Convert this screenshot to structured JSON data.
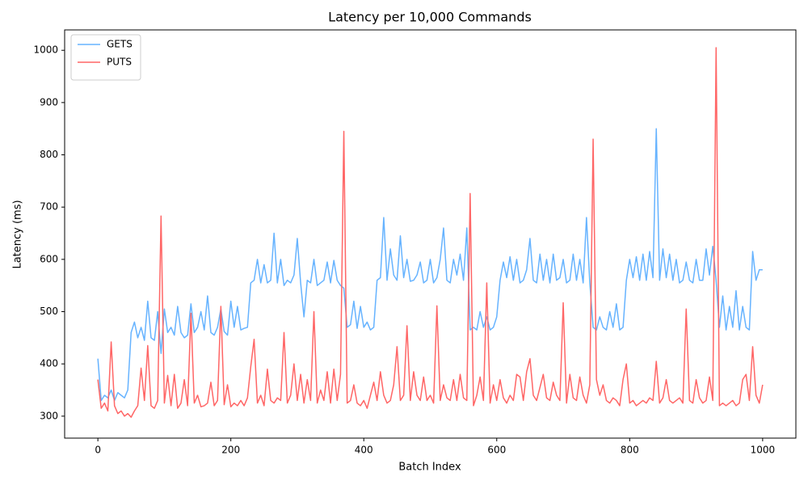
{
  "chart_data": {
    "type": "line",
    "title": "Latency per 10,000 Commands",
    "x_label": "Batch Index",
    "y_label": "Latency (ms)",
    "xlim": [
      -50,
      1050
    ],
    "ylim": [
      258,
      1039
    ],
    "xticks": [
      0,
      200,
      400,
      600,
      800,
      1000
    ],
    "yticks": [
      300,
      400,
      500,
      600,
      700,
      800,
      900,
      1000
    ],
    "grid": false,
    "legend": "upper-left",
    "x": [
      0,
      5,
      10,
      15,
      20,
      25,
      30,
      35,
      40,
      45,
      50,
      55,
      60,
      65,
      70,
      75,
      80,
      85,
      90,
      95,
      100,
      105,
      110,
      115,
      120,
      125,
      130,
      135,
      140,
      145,
      150,
      155,
      160,
      165,
      170,
      175,
      180,
      185,
      190,
      195,
      200,
      205,
      210,
      215,
      220,
      225,
      230,
      235,
      240,
      245,
      250,
      255,
      260,
      265,
      270,
      275,
      280,
      285,
      290,
      295,
      300,
      305,
      310,
      315,
      320,
      325,
      330,
      335,
      340,
      345,
      350,
      355,
      360,
      365,
      370,
      375,
      380,
      385,
      390,
      395,
      400,
      405,
      410,
      415,
      420,
      425,
      430,
      435,
      440,
      445,
      450,
      455,
      460,
      465,
      470,
      475,
      480,
      485,
      490,
      495,
      500,
      505,
      510,
      515,
      520,
      525,
      530,
      535,
      540,
      545,
      550,
      555,
      560,
      565,
      570,
      575,
      580,
      585,
      590,
      595,
      600,
      605,
      610,
      615,
      620,
      625,
      630,
      635,
      640,
      645,
      650,
      655,
      660,
      665,
      670,
      675,
      680,
      685,
      690,
      695,
      700,
      705,
      710,
      715,
      720,
      725,
      730,
      735,
      740,
      745,
      750,
      755,
      760,
      765,
      770,
      775,
      780,
      785,
      790,
      795,
      800,
      805,
      810,
      815,
      820,
      825,
      830,
      835,
      840,
      845,
      850,
      855,
      860,
      865,
      870,
      875,
      880,
      885,
      890,
      895,
      900,
      905,
      910,
      915,
      920,
      925,
      930,
      935,
      940,
      945,
      950,
      955,
      960,
      965,
      970,
      975,
      980,
      985,
      990,
      995,
      1000
    ],
    "series": [
      {
        "name": "GETS",
        "color": "#66b3ff",
        "values": [
          410,
          330,
          340,
          335,
          350,
          330,
          345,
          340,
          335,
          350,
          460,
          480,
          450,
          470,
          445,
          520,
          450,
          445,
          500,
          420,
          505,
          460,
          470,
          455,
          510,
          460,
          450,
          455,
          515,
          460,
          470,
          500,
          465,
          530,
          460,
          455,
          470,
          505,
          462,
          455,
          520,
          470,
          510,
          465,
          468,
          470,
          555,
          560,
          600,
          555,
          590,
          555,
          560,
          650,
          555,
          600,
          550,
          560,
          555,
          570,
          640,
          555,
          490,
          560,
          555,
          600,
          550,
          555,
          560,
          595,
          555,
          598,
          560,
          550,
          545,
          470,
          475,
          520,
          468,
          510,
          470,
          480,
          465,
          470,
          560,
          565,
          680,
          560,
          620,
          570,
          560,
          645,
          565,
          600,
          558,
          560,
          570,
          595,
          555,
          560,
          600,
          555,
          565,
          600,
          660,
          560,
          555,
          600,
          570,
          610,
          560,
          660,
          465,
          470,
          465,
          500,
          470,
          490,
          465,
          470,
          490,
          560,
          595,
          565,
          605,
          560,
          600,
          555,
          560,
          580,
          640,
          560,
          555,
          610,
          560,
          600,
          555,
          610,
          560,
          565,
          600,
          555,
          560,
          610,
          560,
          600,
          555,
          680,
          555,
          470,
          465,
          490,
          470,
          465,
          500,
          470,
          515,
          465,
          470,
          560,
          600,
          565,
          605,
          560,
          610,
          560,
          615,
          565,
          850,
          560,
          620,
          565,
          610,
          560,
          600,
          555,
          560,
          595,
          560,
          555,
          600,
          560,
          560,
          620,
          570,
          625,
          560,
          470,
          530,
          465,
          510,
          470,
          540,
          465,
          510,
          470,
          465,
          615,
          560,
          580,
          580
        ]
      },
      {
        "name": "PUTS",
        "color": "#ff6666",
        "values": [
          370,
          315,
          325,
          310,
          442,
          320,
          305,
          310,
          300,
          305,
          298,
          310,
          320,
          392,
          330,
          435,
          320,
          315,
          330,
          683,
          325,
          378,
          320,
          380,
          315,
          325,
          370,
          320,
          497,
          325,
          340,
          318,
          320,
          325,
          365,
          320,
          330,
          510,
          322,
          360,
          318,
          325,
          320,
          330,
          320,
          335,
          395,
          447,
          325,
          340,
          320,
          390,
          330,
          325,
          335,
          330,
          460,
          325,
          340,
          400,
          330,
          380,
          325,
          370,
          330,
          500,
          325,
          350,
          330,
          385,
          325,
          390,
          330,
          380,
          845,
          325,
          330,
          360,
          325,
          320,
          330,
          315,
          340,
          365,
          330,
          385,
          340,
          325,
          330,
          360,
          433,
          330,
          340,
          473,
          330,
          385,
          340,
          330,
          375,
          330,
          340,
          325,
          511,
          330,
          360,
          335,
          330,
          370,
          330,
          380,
          335,
          330,
          726,
          320,
          340,
          375,
          330,
          555,
          325,
          360,
          330,
          370,
          335,
          325,
          340,
          330,
          380,
          375,
          330,
          385,
          410,
          340,
          330,
          355,
          380,
          335,
          330,
          365,
          340,
          330,
          517,
          325,
          380,
          335,
          330,
          375,
          340,
          325,
          360,
          830,
          370,
          340,
          360,
          330,
          325,
          335,
          330,
          320,
          370,
          400,
          325,
          330,
          320,
          325,
          330,
          325,
          335,
          330,
          405,
          325,
          335,
          370,
          330,
          325,
          330,
          335,
          325,
          505,
          330,
          325,
          370,
          335,
          325,
          330,
          375,
          330,
          1005,
          320,
          325,
          320,
          325,
          330,
          320,
          325,
          370,
          380,
          330,
          433,
          340,
          325,
          360
        ]
      }
    ]
  }
}
